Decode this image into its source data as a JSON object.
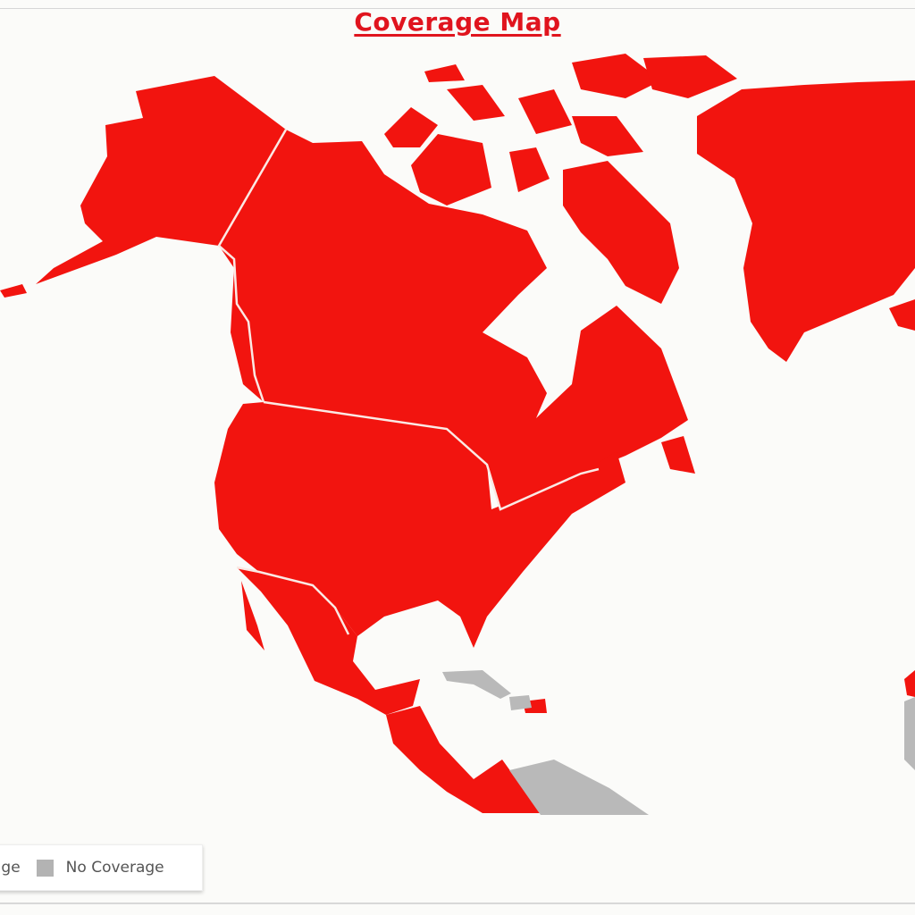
{
  "title": "Coverage Map",
  "legend": {
    "items": [
      {
        "label": "age",
        "color": "#f2140f"
      },
      {
        "label": "No Coverage",
        "color": "#b3b3b3"
      }
    ]
  },
  "colors": {
    "coverage": "#f2140f",
    "no_coverage": "#b9b9b9",
    "background": "#fbfbf9"
  },
  "regions": {
    "covered": [
      "Alaska",
      "Canada",
      "United States",
      "Mexico",
      "Central America",
      "Greenland",
      "Arctic islands"
    ],
    "not_covered": [
      "Cuba",
      "South America"
    ]
  }
}
